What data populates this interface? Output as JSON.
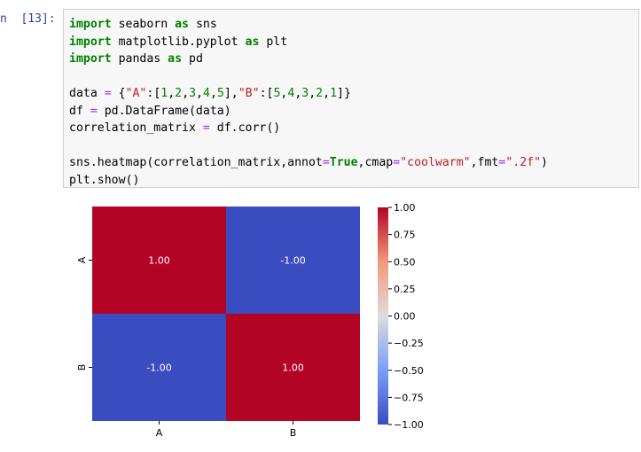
{
  "cell": {
    "prompt": "n  [13]:",
    "code_lines": [
      [
        {
          "t": "import",
          "c": "kw"
        },
        {
          "t": " seaborn "
        },
        {
          "t": "as",
          "c": "kw"
        },
        {
          "t": " sns"
        }
      ],
      [
        {
          "t": "import",
          "c": "kw"
        },
        {
          "t": " matplotlib.pyplot "
        },
        {
          "t": "as",
          "c": "kw"
        },
        {
          "t": " plt"
        }
      ],
      [
        {
          "t": "import",
          "c": "kw"
        },
        {
          "t": " pandas "
        },
        {
          "t": "as",
          "c": "kw"
        },
        {
          "t": " pd"
        }
      ],
      [],
      [
        {
          "t": "data "
        },
        {
          "t": "=",
          "c": "op"
        },
        {
          "t": " {"
        },
        {
          "t": "\"A\"",
          "c": "str"
        },
        {
          "t": ":["
        },
        {
          "t": "1",
          "c": "num"
        },
        {
          "t": ","
        },
        {
          "t": "2",
          "c": "num"
        },
        {
          "t": ","
        },
        {
          "t": "3",
          "c": "num"
        },
        {
          "t": ","
        },
        {
          "t": "4",
          "c": "num"
        },
        {
          "t": ","
        },
        {
          "t": "5",
          "c": "num"
        },
        {
          "t": "],"
        },
        {
          "t": "\"B\"",
          "c": "str"
        },
        {
          "t": ":["
        },
        {
          "t": "5",
          "c": "num"
        },
        {
          "t": ","
        },
        {
          "t": "4",
          "c": "num"
        },
        {
          "t": ","
        },
        {
          "t": "3",
          "c": "num"
        },
        {
          "t": ","
        },
        {
          "t": "2",
          "c": "num"
        },
        {
          "t": ","
        },
        {
          "t": "1",
          "c": "num"
        },
        {
          "t": "]}"
        }
      ],
      [
        {
          "t": "df "
        },
        {
          "t": "=",
          "c": "op"
        },
        {
          "t": " pd.DataFrame(data)"
        }
      ],
      [
        {
          "t": "correlation_matrix "
        },
        {
          "t": "=",
          "c": "op"
        },
        {
          "t": " df.corr()"
        }
      ],
      [],
      [
        {
          "t": "sns.heatmap(correlation_matrix,annot"
        },
        {
          "t": "=",
          "c": "op"
        },
        {
          "t": "True",
          "c": "kw"
        },
        {
          "t": ",cmap"
        },
        {
          "t": "=",
          "c": "op"
        },
        {
          "t": "\"coolwarm\"",
          "c": "str"
        },
        {
          "t": ",fmt"
        },
        {
          "t": "=",
          "c": "op"
        },
        {
          "t": "\".2f\"",
          "c": "str"
        },
        {
          "t": ")"
        }
      ],
      [
        {
          "t": "plt.show()"
        }
      ]
    ]
  },
  "chart_data": {
    "type": "heatmap",
    "rows": [
      "A",
      "B"
    ],
    "cols": [
      "A",
      "B"
    ],
    "values": [
      [
        1.0,
        -1.0
      ],
      [
        -1.0,
        1.0
      ]
    ],
    "annotations": [
      [
        "1.00",
        "-1.00"
      ],
      [
        "-1.00",
        "1.00"
      ]
    ],
    "colormap": "coolwarm",
    "vmin": -1.0,
    "vmax": 1.0,
    "colorbar_ticks": [
      "1.00",
      "0.75",
      "0.50",
      "0.25",
      "0.00",
      "−0.25",
      "−0.50",
      "−0.75",
      "−1.00"
    ],
    "colorbar_tick_values": [
      1.0,
      0.75,
      0.5,
      0.25,
      0.0,
      -0.25,
      -0.5,
      -0.75,
      -1.0
    ],
    "colors": {
      "high": "#b40426",
      "low": "#3b4cc0"
    }
  }
}
